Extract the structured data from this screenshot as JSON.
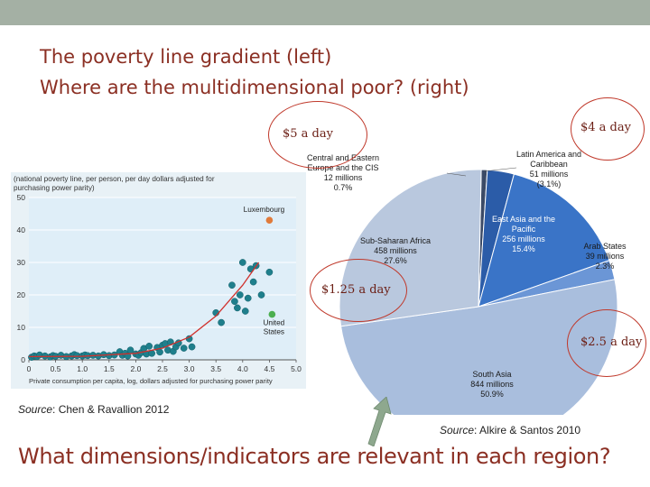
{
  "slide": {
    "title_line1": "The poverty line gradient (left)",
    "title_line2": "Where are the multidimensional poor? (right)",
    "question": "What dimensions/indicators are relevant in each region?",
    "source_left_label": "Source",
    "source_left_text": ": Chen & Ravallion 2012",
    "source_right_label": "Source",
    "source_right_text": ": Alkire & Santos 2010",
    "callouts": [
      "$5 a day",
      "$4 a day",
      "$1.25 a day",
      "$2.5 a day"
    ],
    "colors": {
      "title": "#8b2f23",
      "topbar": "#a4b0a4",
      "scatter_bg": "#dfeef8",
      "points": "#1f7f8c",
      "fit_line": "#d0312d",
      "callout": "#c0392b",
      "arrow": "#8ea88e"
    }
  },
  "chart_data": [
    {
      "type": "scatter",
      "title": "(national poverty line, per person, per day dollars adjusted for purchasing power parity)",
      "xlabel": "Private consumption per capita, log, dollars adjusted for purchasing power parity",
      "xlim": [
        0,
        5
      ],
      "ylim": [
        0,
        50
      ],
      "xticks": [
        "0",
        "0.5",
        "1.0",
        "1.5",
        "2.0",
        "2.5",
        "3.0",
        "3.5",
        "4.0",
        "4.5",
        "5.0"
      ],
      "yticks": [
        "0",
        "10",
        "20",
        "30",
        "40",
        "50"
      ],
      "grid": true,
      "annotations": [
        {
          "label": "Luxembourg",
          "x": 4.5,
          "y": 43,
          "color": "#e07a3a"
        },
        {
          "label": "United States",
          "x": 4.55,
          "y": 14,
          "color": "#4caf50"
        }
      ],
      "points": [
        [
          0.05,
          0.8
        ],
        [
          0.1,
          1.2
        ],
        [
          0.15,
          1.0
        ],
        [
          0.2,
          1.5
        ],
        [
          0.3,
          1.2
        ],
        [
          0.4,
          0.9
        ],
        [
          0.45,
          1.3
        ],
        [
          0.5,
          1.1
        ],
        [
          0.6,
          1.4
        ],
        [
          0.7,
          1.0
        ],
        [
          0.8,
          1.2
        ],
        [
          0.85,
          1.6
        ],
        [
          0.9,
          1.3
        ],
        [
          1.0,
          1.2
        ],
        [
          1.05,
          1.5
        ],
        [
          1.1,
          1.3
        ],
        [
          1.2,
          1.4
        ],
        [
          1.3,
          1.2
        ],
        [
          1.4,
          1.6
        ],
        [
          1.5,
          1.3
        ],
        [
          1.6,
          1.5
        ],
        [
          1.7,
          2.5
        ],
        [
          1.75,
          1.4
        ],
        [
          1.8,
          2.0
        ],
        [
          1.85,
          1.2
        ],
        [
          1.9,
          3.0
        ],
        [
          2.0,
          1.8
        ],
        [
          2.05,
          1.4
        ],
        [
          2.1,
          2.2
        ],
        [
          2.15,
          3.5
        ],
        [
          2.2,
          1.8
        ],
        [
          2.25,
          4.2
        ],
        [
          2.3,
          2.0
        ],
        [
          2.4,
          3.8
        ],
        [
          2.45,
          2.4
        ],
        [
          2.5,
          4.5
        ],
        [
          2.55,
          5.0
        ],
        [
          2.6,
          3.0
        ],
        [
          2.65,
          5.5
        ],
        [
          2.7,
          2.6
        ],
        [
          2.75,
          4.0
        ],
        [
          2.8,
          5.2
        ],
        [
          2.9,
          3.6
        ],
        [
          3.0,
          6.5
        ],
        [
          3.05,
          4.0
        ],
        [
          3.5,
          14.5
        ],
        [
          3.6,
          11.5
        ],
        [
          3.8,
          23
        ],
        [
          3.85,
          18
        ],
        [
          3.9,
          16
        ],
        [
          3.95,
          20
        ],
        [
          4.0,
          30
        ],
        [
          4.05,
          15
        ],
        [
          4.1,
          19
        ],
        [
          4.15,
          28
        ],
        [
          4.2,
          24
        ],
        [
          4.25,
          29
        ],
        [
          4.35,
          20
        ],
        [
          4.5,
          27
        ]
      ],
      "fit_line": [
        [
          0,
          1
        ],
        [
          1,
          1.1
        ],
        [
          2,
          2
        ],
        [
          2.5,
          3.6
        ],
        [
          3,
          7
        ],
        [
          3.5,
          13.5
        ],
        [
          4,
          23
        ],
        [
          4.3,
          30
        ]
      ]
    },
    {
      "type": "pie",
      "slices": [
        {
          "label_lines": [
            "Central and Eastern",
            "Europe and the CIS",
            "12 millions",
            "0.7%"
          ],
          "value": 0.7,
          "color": "#3b4a66"
        },
        {
          "label_lines": [
            "Latin America and",
            "Caribbean",
            "51 millions",
            "(3.1%)"
          ],
          "value": 3.1,
          "color": "#2b5ca8"
        },
        {
          "label_lines": [
            "East Asia and the",
            "Pacific",
            "256 millions",
            "15.4%"
          ],
          "value": 15.4,
          "color": "#3a74c7"
        },
        {
          "label_lines": [
            "Arab States",
            "39 millions",
            "2.3%"
          ],
          "value": 2.3,
          "color": "#6b96d6"
        },
        {
          "label_lines": [
            "South Asia",
            "844 millions",
            "50.9%"
          ],
          "value": 50.9,
          "color": "#a9bedd"
        },
        {
          "label_lines": [
            "Sub-Saharan Africa",
            "458 millions",
            "27.6%"
          ],
          "value": 27.6,
          "color": "#b9c8de"
        }
      ]
    }
  ]
}
